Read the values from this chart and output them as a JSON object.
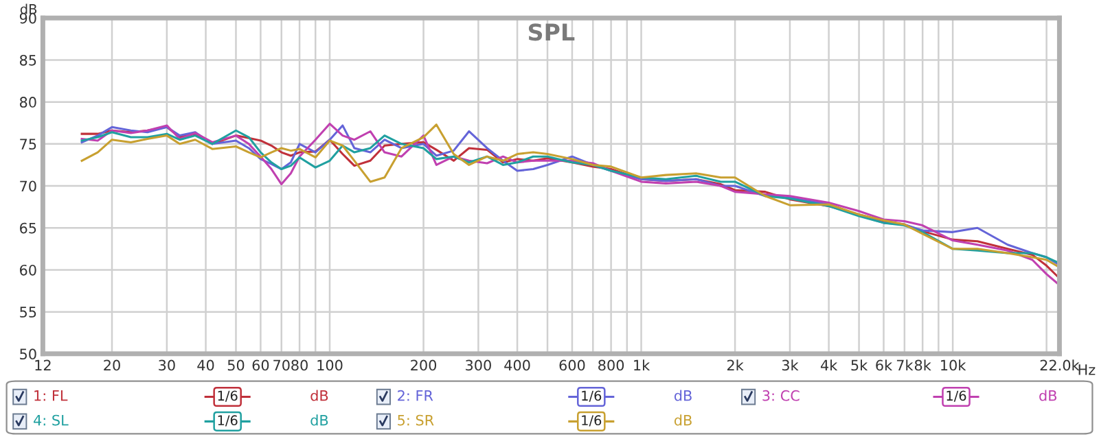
{
  "chart_data": {
    "type": "line",
    "title": "SPL",
    "xlabel": "Hz",
    "ylabel": "dB",
    "log": "x",
    "grid": true,
    "legend": "bottom",
    "line_style": "solid",
    "marker": "none",
    "x": [
      16,
      18,
      20,
      23,
      26,
      30,
      33,
      37,
      42,
      50,
      55,
      60,
      65,
      70,
      75,
      80,
      90,
      100,
      110,
      120,
      135,
      150,
      170,
      200,
      220,
      250,
      280,
      320,
      360,
      400,
      450,
      500,
      600,
      700,
      800,
      1000,
      1200,
      1500,
      1800,
      2000,
      2500,
      3000,
      4000,
      5000,
      6000,
      7000,
      8000,
      10000,
      12000,
      15000,
      18000,
      20000,
      22000
    ],
    "xlim": [
      12,
      22000
    ],
    "ylim": [
      50,
      90
    ],
    "yticks": [
      50,
      55,
      60,
      65,
      70,
      75,
      80,
      85,
      90
    ],
    "xticks": [
      12,
      20,
      30,
      40,
      50,
      60,
      70,
      80,
      {
        "value": 90,
        "label": null
      },
      100,
      200,
      300,
      400,
      {
        "value": 500,
        "label": null
      },
      600,
      {
        "value": 700,
        "label": null
      },
      800,
      {
        "value": 900,
        "label": null
      },
      {
        "value": 1000,
        "label": "1k"
      },
      {
        "value": 2000,
        "label": "2k"
      },
      {
        "value": 3000,
        "label": "3k"
      },
      {
        "value": 4000,
        "label": "4k"
      },
      {
        "value": 5000,
        "label": "5k"
      },
      {
        "value": 6000,
        "label": "6k"
      },
      {
        "value": 7000,
        "label": "7k"
      },
      {
        "value": 8000,
        "label": "8k"
      },
      {
        "value": 9000,
        "label": null
      },
      {
        "value": 10000,
        "label": "10k"
      },
      {
        "value": 20000,
        "label": null
      },
      {
        "value": 22000,
        "label": "22.0k"
      }
    ],
    "annotations": [
      "1/6",
      "dB",
      "1/6",
      "dB",
      "1/6",
      "dB",
      "1/6",
      "dB",
      "1/6",
      "dB"
    ],
    "series": [
      {
        "name": "1: FL",
        "color": "#c0303a",
        "values": [
          76.2,
          76.2,
          76.6,
          76.4,
          76.6,
          77.0,
          75.8,
          76.2,
          75.0,
          76.0,
          75.7,
          75.4,
          74.8,
          74.0,
          73.6,
          74.0,
          74.1,
          75.5,
          73.8,
          72.4,
          73.0,
          74.8,
          75.0,
          75.2,
          74.3,
          73.0,
          74.5,
          74.3,
          72.8,
          73.2,
          73.0,
          73.3,
          72.8,
          72.3,
          72.0,
          70.8,
          70.6,
          70.8,
          70.2,
          69.5,
          69.3,
          68.4,
          67.6,
          66.6,
          65.8,
          65.4,
          64.6,
          63.6,
          63.4,
          62.5,
          61.8,
          60.5,
          59.0
        ]
      },
      {
        "name": "2: FR",
        "color": "#6464d8",
        "values": [
          75.2,
          76.0,
          77.0,
          76.6,
          76.4,
          77.0,
          76.0,
          76.4,
          75.0,
          75.4,
          74.5,
          73.2,
          72.6,
          72.0,
          72.8,
          75.0,
          74.0,
          75.5,
          77.2,
          74.5,
          74.0,
          75.5,
          74.5,
          75.0,
          73.6,
          74.2,
          76.5,
          74.5,
          73.0,
          71.8,
          72.0,
          72.5,
          73.5,
          72.5,
          71.8,
          70.8,
          70.6,
          70.8,
          70.0,
          70.0,
          68.8,
          68.6,
          67.8,
          66.5,
          65.6,
          65.4,
          64.7,
          64.5,
          65.0,
          63.0,
          62.0,
          61.5,
          60.6
        ]
      },
      {
        "name": "3: CC",
        "color": "#c040b0",
        "values": [
          75.6,
          75.4,
          76.6,
          76.3,
          76.6,
          77.2,
          75.6,
          76.3,
          75.2,
          76.0,
          75.0,
          73.5,
          72.0,
          70.2,
          71.5,
          73.5,
          75.5,
          77.4,
          76.0,
          75.5,
          76.5,
          74.0,
          73.5,
          76.0,
          72.5,
          73.5,
          73.0,
          72.7,
          73.5,
          72.8,
          73.0,
          73.0,
          73.0,
          72.7,
          71.8,
          70.5,
          70.3,
          70.5,
          70.0,
          69.3,
          69.0,
          68.8,
          68.0,
          67.0,
          66.0,
          65.8,
          65.3,
          63.5,
          63.0,
          62.3,
          61.2,
          59.5,
          58.2
        ]
      },
      {
        "name": "4: SL",
        "color": "#20a0a0",
        "values": [
          75.4,
          75.8,
          76.4,
          75.8,
          75.8,
          76.2,
          75.5,
          76.0,
          75.0,
          76.6,
          75.8,
          74.0,
          72.8,
          72.0,
          72.4,
          73.4,
          72.2,
          73.0,
          74.8,
          74.0,
          74.5,
          76.0,
          75.0,
          74.5,
          73.2,
          73.5,
          72.8,
          73.5,
          72.5,
          72.8,
          73.5,
          73.5,
          72.8,
          72.5,
          71.8,
          71.0,
          70.8,
          71.2,
          70.5,
          70.5,
          68.8,
          68.5,
          67.6,
          66.4,
          65.6,
          65.3,
          64.5,
          62.5,
          62.3,
          62.0,
          62.0,
          61.5,
          60.8
        ]
      },
      {
        "name": "5: SR",
        "color": "#c8a030",
        "values": [
          73.0,
          74.0,
          75.5,
          75.2,
          75.6,
          76.0,
          75.0,
          75.5,
          74.4,
          74.7,
          74.0,
          73.4,
          74.0,
          74.5,
          74.2,
          74.4,
          73.4,
          75.4,
          74.8,
          73.0,
          70.5,
          71.0,
          74.5,
          75.8,
          77.3,
          73.8,
          72.5,
          73.5,
          73.0,
          73.8,
          74.0,
          73.8,
          73.2,
          72.5,
          72.3,
          71.0,
          71.3,
          71.5,
          71.0,
          71.0,
          68.8,
          67.7,
          67.8,
          66.6,
          65.9,
          65.4,
          64.3,
          62.5,
          62.5,
          62.0,
          61.5,
          61.2,
          60.3
        ]
      }
    ]
  }
}
